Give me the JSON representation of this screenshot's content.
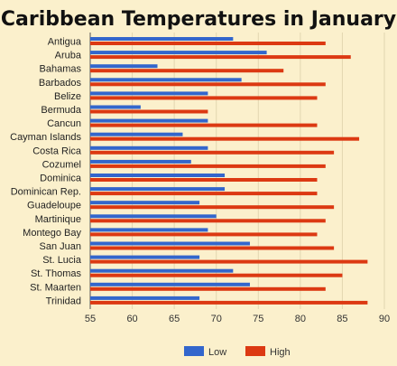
{
  "chart_data": {
    "type": "bar",
    "orientation": "horizontal",
    "title": "Caribbean Temperatures in January",
    "categories": [
      "Antigua",
      "Aruba",
      "Bahamas",
      "Barbados",
      "Belize",
      "Bermuda",
      "Cancun",
      "Cayman Islands",
      "Costa Rica",
      "Cozumel",
      "Dominica",
      "Dominican Rep.",
      "Guadeloupe",
      "Martinique",
      "Montego Bay",
      "San Juan",
      "St. Lucia",
      "St. Thomas",
      "St. Maarten",
      "Trinidad"
    ],
    "series": [
      {
        "name": "Low",
        "color": "#3366cc",
        "values": [
          72,
          76,
          63,
          73,
          69,
          61,
          69,
          66,
          69,
          67,
          71,
          71,
          68,
          70,
          69,
          74,
          68,
          72,
          74,
          68
        ]
      },
      {
        "name": "High",
        "color": "#dc3912",
        "values": [
          83,
          86,
          78,
          83,
          82,
          69,
          82,
          87,
          84,
          83,
          82,
          82,
          84,
          83,
          82,
          84,
          88,
          85,
          83,
          88
        ]
      }
    ],
    "xlim": [
      55,
      90
    ],
    "xticks": [
      "55",
      "60",
      "65",
      "70",
      "75",
      "80",
      "85",
      "90"
    ],
    "grid": true,
    "legend_position": "bottom"
  }
}
